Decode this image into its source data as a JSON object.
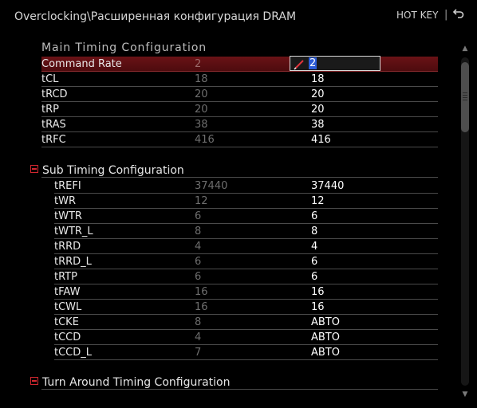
{
  "header": {
    "path": "Overclocking\\Расширенная конфигурация DRAM",
    "hotkey_label": "HOT KEY",
    "separator": "|",
    "back_icon": "back-arrow-icon"
  },
  "main_timing": {
    "title": "Main Timing Configuration",
    "rows": [
      {
        "name": "Command Rate",
        "current": "2",
        "value": "2"
      },
      {
        "name": "tCL",
        "current": "18",
        "value": "18"
      },
      {
        "name": "tRCD",
        "current": "20",
        "value": "20"
      },
      {
        "name": "tRP",
        "current": "20",
        "value": "20"
      },
      {
        "name": "tRAS",
        "current": "38",
        "value": "38"
      },
      {
        "name": "tRFC",
        "current": "416",
        "value": "416"
      }
    ]
  },
  "sub_timing": {
    "title": "Sub Timing Configuration",
    "rows": [
      {
        "name": "tREFI",
        "current": "37440",
        "value": "37440"
      },
      {
        "name": "tWR",
        "current": "12",
        "value": "12"
      },
      {
        "name": "tWTR",
        "current": "6",
        "value": "6"
      },
      {
        "name": "tWTR_L",
        "current": "8",
        "value": "8"
      },
      {
        "name": "tRRD",
        "current": "4",
        "value": "4"
      },
      {
        "name": "tRRD_L",
        "current": "6",
        "value": "6"
      },
      {
        "name": "tRTP",
        "current": "6",
        "value": "6"
      },
      {
        "name": "tFAW",
        "current": "16",
        "value": "16"
      },
      {
        "name": "tCWL",
        "current": "16",
        "value": "16"
      },
      {
        "name": "tCKE",
        "current": "8",
        "value": "АВТО"
      },
      {
        "name": "tCCD",
        "current": "4",
        "value": "АВТО"
      },
      {
        "name": "tCCD_L",
        "current": "7",
        "value": "АВТО"
      }
    ]
  },
  "turn_around": {
    "title": "Turn Around Timing Configuration"
  },
  "colors": {
    "background": "#000000",
    "selected_row": "#6a1216",
    "accent_red": "#d1272f",
    "edit_highlight": "#2c5bd6"
  }
}
